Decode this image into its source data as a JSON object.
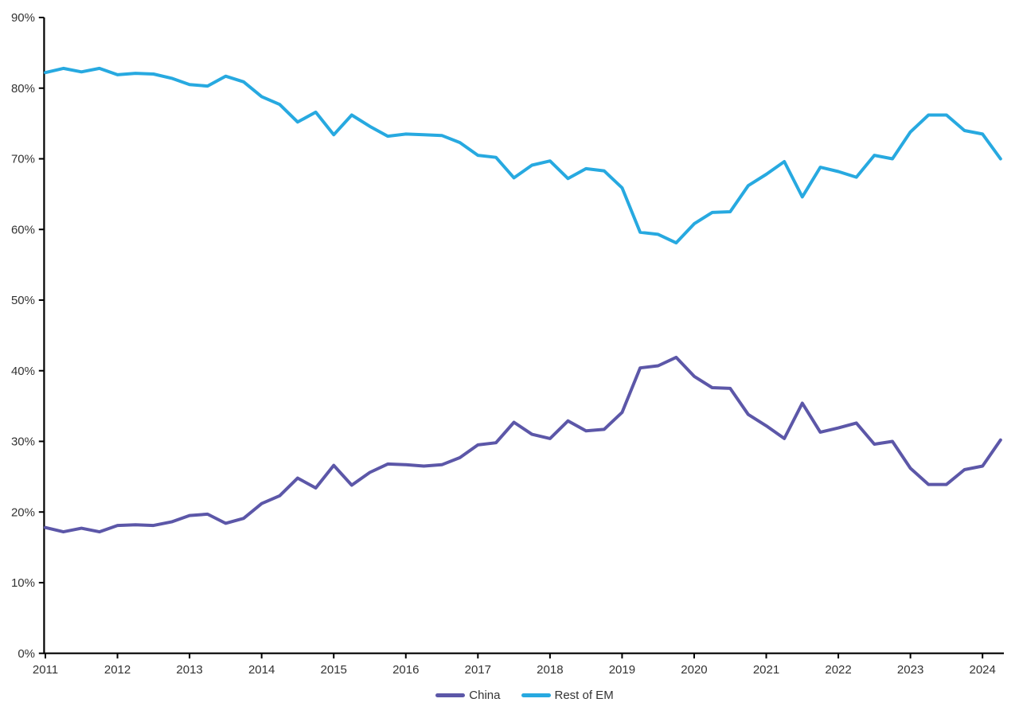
{
  "chart_data": {
    "type": "line",
    "title": "",
    "xlabel": "",
    "ylabel": "",
    "ylim": [
      0,
      90
    ],
    "grid": false,
    "legend_position": "bottom-center",
    "axis_color": "#000000",
    "label_color": "#333333",
    "y_tick_labels": [
      "0%",
      "10%",
      "20%",
      "30%",
      "40%",
      "50%",
      "60%",
      "70%",
      "80%",
      "90%"
    ],
    "x_tick_labels": [
      "2011",
      "2012",
      "2013",
      "2014",
      "2015",
      "2016",
      "2017",
      "2018",
      "2019",
      "2020",
      "2021",
      "2022",
      "2023",
      "2024"
    ],
    "x": [
      "2011Q1",
      "2011Q2",
      "2011Q3",
      "2011Q4",
      "2012Q1",
      "2012Q2",
      "2012Q3",
      "2012Q4",
      "2013Q1",
      "2013Q2",
      "2013Q3",
      "2013Q4",
      "2014Q1",
      "2014Q2",
      "2014Q3",
      "2014Q4",
      "2015Q1",
      "2015Q2",
      "2015Q3",
      "2015Q4",
      "2016Q1",
      "2016Q2",
      "2016Q3",
      "2016Q4",
      "2017Q1",
      "2017Q2",
      "2017Q3",
      "2017Q4",
      "2018Q1",
      "2018Q2",
      "2018Q3",
      "2018Q4",
      "2019Q1",
      "2019Q2",
      "2019Q3",
      "2019Q4",
      "2020Q1",
      "2020Q2",
      "2020Q3",
      "2020Q4",
      "2021Q1",
      "2021Q2",
      "2021Q3",
      "2021Q4",
      "2022Q1",
      "2022Q2",
      "2022Q3",
      "2022Q4",
      "2023Q1",
      "2023Q2",
      "2023Q3",
      "2023Q4",
      "2024Q1",
      "2024Q2"
    ],
    "series": [
      {
        "name": "China",
        "color": "#5C57A8",
        "values": [
          17.8,
          17.2,
          17.7,
          17.2,
          18.1,
          18.2,
          18.1,
          18.6,
          19.5,
          19.7,
          18.4,
          19.1,
          21.2,
          22.3,
          24.8,
          23.4,
          26.6,
          23.8,
          25.6,
          26.8,
          26.7,
          26.5,
          26.7,
          27.7,
          29.5,
          29.8,
          32.7,
          31.0,
          30.4,
          32.9,
          31.5,
          31.7,
          34.1,
          40.4,
          40.7,
          41.9,
          39.2,
          37.6,
          37.5,
          33.8,
          32.2,
          30.4,
          35.4,
          31.3,
          31.9,
          32.6,
          29.6,
          30.0,
          26.2,
          23.9,
          23.9,
          26.0,
          26.5,
          30.2
        ]
      },
      {
        "name": "Rest of EM",
        "color": "#27A9E0",
        "values": [
          82.2,
          82.8,
          82.3,
          82.8,
          81.9,
          82.1,
          82.0,
          81.4,
          80.5,
          80.3,
          81.7,
          80.9,
          78.8,
          77.7,
          75.2,
          76.6,
          73.4,
          76.2,
          74.6,
          73.2,
          73.5,
          73.4,
          73.3,
          72.3,
          70.5,
          70.2,
          67.3,
          69.1,
          69.7,
          67.2,
          68.6,
          68.3,
          65.9,
          59.6,
          59.3,
          58.1,
          60.8,
          62.4,
          62.5,
          66.2,
          67.8,
          69.6,
          64.6,
          68.8,
          68.2,
          67.4,
          70.5,
          70.0,
          73.8,
          76.2,
          76.2,
          74.0,
          73.5,
          70.0
        ]
      }
    ]
  }
}
